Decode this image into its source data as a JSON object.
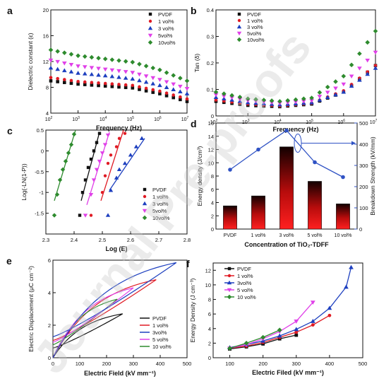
{
  "watermark": "Journal Pre-proofs",
  "chart_data": [
    {
      "id": "a",
      "panel_label": "a",
      "type": "scatter",
      "xlabel": "Frequency (Hz)",
      "ylabel": "Dielectric constant (ε)",
      "xscale": "log",
      "xlim": [
        100,
        10000000
      ],
      "ylim": [
        4,
        20
      ],
      "xticks": [
        100,
        1000,
        10000,
        100000,
        1000000,
        10000000
      ],
      "yticks": [
        4,
        8,
        12,
        16,
        20
      ],
      "legend": "top-right",
      "series": [
        {
          "name": "PVDF",
          "color": "#111111",
          "marker": "square",
          "points": [
            [
              100,
              9.0
            ],
            [
              1000,
              8.5
            ],
            [
              10000,
              8.2
            ],
            [
              100000,
              7.9
            ],
            [
              1000000,
              7.0
            ],
            [
              10000000,
              5.8
            ]
          ]
        },
        {
          "name": "1 vol%",
          "color": "#e01b24",
          "marker": "circle",
          "points": [
            [
              100,
              9.5
            ],
            [
              1000,
              8.9
            ],
            [
              10000,
              8.6
            ],
            [
              100000,
              8.3
            ],
            [
              1000000,
              7.4
            ],
            [
              10000000,
              6.2
            ]
          ]
        },
        {
          "name": "3 vol%",
          "color": "#1d3fbf",
          "marker": "triangle",
          "points": [
            [
              100,
              11.0
            ],
            [
              1000,
              10.2
            ],
            [
              10000,
              9.8
            ],
            [
              100000,
              9.3
            ],
            [
              1000000,
              8.3
            ],
            [
              10000000,
              7.0
            ]
          ]
        },
        {
          "name": "5vol%",
          "color": "#e040e8",
          "marker": "triangle-down",
          "points": [
            [
              100,
              12.2
            ],
            [
              1000,
              11.3
            ],
            [
              10000,
              10.8
            ],
            [
              100000,
              10.3
            ],
            [
              1000000,
              9.2
            ],
            [
              10000000,
              7.8
            ]
          ]
        },
        {
          "name": "10vol%",
          "color": "#2e8b2e",
          "marker": "diamond",
          "points": [
            [
              100,
              13.8
            ],
            [
              1000,
              12.9
            ],
            [
              10000,
              12.4
            ],
            [
              100000,
              11.9
            ],
            [
              1000000,
              10.7
            ],
            [
              10000000,
              9.0
            ]
          ]
        }
      ]
    },
    {
      "id": "b",
      "panel_label": "b",
      "type": "scatter",
      "xlabel": "Frequency (Hz)",
      "ylabel": "Tan (δ)",
      "xscale": "log",
      "xlim": [
        100,
        10000000
      ],
      "ylim": [
        0,
        0.4
      ],
      "xticks": [
        100,
        1000,
        10000,
        100000,
        1000000,
        10000000
      ],
      "yticks": [
        0,
        0.1,
        0.2,
        0.3,
        0.4
      ],
      "legend": "top-left",
      "series": [
        {
          "name": "PVDF",
          "color": "#111111",
          "marker": "square",
          "points": [
            [
              100,
              0.055
            ],
            [
              1000,
              0.04
            ],
            [
              10000,
              0.035
            ],
            [
              100000,
              0.045
            ],
            [
              1000000,
              0.09
            ],
            [
              10000000,
              0.19
            ]
          ]
        },
        {
          "name": "1 vol%",
          "color": "#e01b24",
          "marker": "circle",
          "points": [
            [
              100,
              0.06
            ],
            [
              1000,
              0.045
            ],
            [
              10000,
              0.038
            ],
            [
              100000,
              0.048
            ],
            [
              1000000,
              0.095
            ],
            [
              10000000,
              0.19
            ]
          ]
        },
        {
          "name": "3 vol%",
          "color": "#1d3fbf",
          "marker": "triangle",
          "points": [
            [
              100,
              0.07
            ],
            [
              1000,
              0.05
            ],
            [
              10000,
              0.042
            ],
            [
              100000,
              0.05
            ],
            [
              1000000,
              0.09
            ],
            [
              10000000,
              0.18
            ]
          ]
        },
        {
          "name": "5vol%",
          "color": "#e040e8",
          "marker": "triangle-down",
          "points": [
            [
              100,
              0.08
            ],
            [
              1000,
              0.058
            ],
            [
              10000,
              0.048
            ],
            [
              100000,
              0.058
            ],
            [
              1000000,
              0.12
            ],
            [
              10000000,
              0.24
            ]
          ]
        },
        {
          "name": "10vol%",
          "color": "#2e8b2e",
          "marker": "diamond",
          "points": [
            [
              100,
              0.09
            ],
            [
              1000,
              0.065
            ],
            [
              10000,
              0.055
            ],
            [
              100000,
              0.068
            ],
            [
              1000000,
              0.15
            ],
            [
              10000000,
              0.32
            ]
          ]
        }
      ]
    },
    {
      "id": "c",
      "panel_label": "c",
      "type": "scatter",
      "xlabel": "Log (E)",
      "ylabel": "Log(-LN(1-P))",
      "xlim": [
        2.3,
        2.8
      ],
      "ylim": [
        -2.0,
        0.5
      ],
      "xticks": [
        2.3,
        2.4,
        2.5,
        2.6,
        2.7,
        2.8
      ],
      "yticks": [
        -1.5,
        -1.0,
        -0.5,
        0.0,
        0.5
      ],
      "legend": "bottom-right",
      "series": [
        {
          "name": "PVDF",
          "color": "#111111",
          "marker": "square",
          "points": [
            [
              2.42,
              -1.55
            ],
            [
              2.43,
              -1.0
            ],
            [
              2.44,
              -0.7
            ],
            [
              2.45,
              -0.4
            ],
            [
              2.46,
              -0.2
            ],
            [
              2.47,
              0.0
            ],
            [
              2.48,
              0.2
            ],
            [
              2.49,
              0.42
            ]
          ],
          "fit": [
            [
              2.425,
              -1.2
            ],
            [
              2.49,
              0.45
            ]
          ]
        },
        {
          "name": "1 vol%",
          "color": "#e01b24",
          "marker": "circle",
          "points": [
            [
              2.46,
              -1.55
            ],
            [
              2.5,
              -1.0
            ],
            [
              2.51,
              -0.6
            ],
            [
              2.52,
              -0.3
            ],
            [
              2.53,
              -0.1
            ],
            [
              2.55,
              0.1
            ],
            [
              2.56,
              0.3
            ],
            [
              2.58,
              0.42
            ]
          ],
          "fit": [
            [
              2.495,
              -1.2
            ],
            [
              2.575,
              0.5
            ]
          ]
        },
        {
          "name": "3 vol%",
          "color": "#1d3fbf",
          "marker": "triangle",
          "points": [
            [
              2.52,
              -1.55
            ],
            [
              2.53,
              -0.95
            ],
            [
              2.55,
              -0.65
            ],
            [
              2.56,
              -0.45
            ],
            [
              2.58,
              -0.3
            ],
            [
              2.6,
              -0.1
            ],
            [
              2.62,
              0.1
            ],
            [
              2.64,
              0.3
            ]
          ],
          "fit": [
            [
              2.525,
              -0.95
            ],
            [
              2.65,
              0.3
            ]
          ]
        },
        {
          "name": "5vol%",
          "color": "#e040e8",
          "marker": "triangle-down",
          "points": [
            [
              2.44,
              -1.55
            ],
            [
              2.46,
              -1.05
            ],
            [
              2.47,
              -0.7
            ],
            [
              2.48,
              -0.45
            ],
            [
              2.49,
              -0.25
            ],
            [
              2.5,
              -0.05
            ],
            [
              2.51,
              0.15
            ],
            [
              2.52,
              0.38
            ]
          ],
          "fit": [
            [
              2.445,
              -1.3
            ],
            [
              2.525,
              0.45
            ]
          ]
        },
        {
          "name": "10vol%",
          "color": "#2e8b2e",
          "marker": "diamond",
          "points": [
            [
              2.33,
              -1.55
            ],
            [
              2.34,
              -1.05
            ],
            [
              2.35,
              -0.7
            ],
            [
              2.36,
              -0.45
            ],
            [
              2.37,
              -0.25
            ],
            [
              2.38,
              -0.05
            ],
            [
              2.39,
              0.15
            ],
            [
              2.4,
              0.4
            ]
          ],
          "fit": [
            [
              2.33,
              -1.2
            ],
            [
              2.405,
              0.5
            ]
          ]
        }
      ]
    },
    {
      "id": "d",
      "panel_label": "d",
      "type": "bar",
      "categories": [
        "PVDF",
        "1 vol%",
        "3 vol%",
        "5 vol%",
        "10 vol%"
      ],
      "xlabel": "Concentration of TiO₂-TDFF",
      "ylabel": "Energy density (J/cm³)",
      "ylabel_right": "Breakdown Strength (kV/mm)",
      "ylim": [
        0,
        16
      ],
      "yticks": [
        0,
        2,
        4,
        6,
        8,
        10,
        12,
        14,
        16
      ],
      "ylim_right": [
        0,
        500
      ],
      "yticks_right": [
        0,
        100,
        200,
        300,
        400,
        500
      ],
      "bar_values": [
        3.5,
        5.0,
        12.4,
        7.2,
        3.8
      ],
      "line_values": [
        280,
        375,
        465,
        315,
        245
      ],
      "bar_color": "#e01010",
      "line_color": "#2f52c4"
    },
    {
      "id": "e",
      "panel_label": "e",
      "type": "line",
      "xlabel": "Electric Field (kV mm⁻¹)",
      "ylabel": "Electric Displacement (μC cm⁻²)",
      "xlim": [
        0,
        500
      ],
      "ylim": [
        0,
        6
      ],
      "xticks": [
        0,
        100,
        200,
        300,
        400,
        500
      ],
      "yticks": [
        0,
        2,
        4,
        6
      ],
      "legend": "bottom-right",
      "series": [
        {
          "name": "PVDF",
          "color": "#111111",
          "emax": 260,
          "dmax": 2.7
        },
        {
          "name": "1 vol%",
          "color": "#e01b24",
          "emax": 385,
          "dmax": 4.8
        },
        {
          "name": "3vol%",
          "color": "#1d3fbf",
          "emax": 460,
          "dmax": 5.85
        },
        {
          "name": "5 vol%",
          "color": "#e040e8",
          "emax": 300,
          "dmax": 4.3
        },
        {
          "name": "10 vol%",
          "color": "#2e8b2e",
          "emax": 240,
          "dmax": 3.6
        }
      ]
    },
    {
      "id": "f",
      "panel_label": "f",
      "type": "line",
      "xlabel": "Electric Filed (kV mm⁻¹)",
      "ylabel": "Energy Density (J cm⁻³)",
      "xlim": [
        50,
        500
      ],
      "ylim": [
        0,
        13
      ],
      "xticks": [
        100,
        200,
        300,
        400,
        500
      ],
      "yticks": [
        0,
        2,
        4,
        6,
        8,
        10,
        12
      ],
      "legend": "top-left",
      "series": [
        {
          "name": "PVDF",
          "color": "#111111",
          "marker": "square",
          "points": [
            [
              100,
              1.2
            ],
            [
              150,
              1.5
            ],
            [
              200,
              1.9
            ],
            [
              250,
              2.6
            ],
            [
              300,
              3.1
            ]
          ]
        },
        {
          "name": "1 vol%",
          "color": "#e01b24",
          "marker": "circle",
          "points": [
            [
              100,
              1.3
            ],
            [
              150,
              1.6
            ],
            [
              200,
              2.1
            ],
            [
              250,
              2.8
            ],
            [
              300,
              3.5
            ],
            [
              350,
              4.5
            ],
            [
              400,
              5.8
            ]
          ]
        },
        {
          "name": "3vol%",
          "color": "#1d3fbf",
          "marker": "triangle",
          "points": [
            [
              100,
              1.4
            ],
            [
              150,
              1.8
            ],
            [
              200,
              2.3
            ],
            [
              250,
              3.0
            ],
            [
              300,
              3.9
            ],
            [
              350,
              5.0
            ],
            [
              400,
              6.8
            ],
            [
              450,
              9.7
            ],
            [
              465,
              12.4
            ]
          ]
        },
        {
          "name": "5 vol%",
          "color": "#e040e8",
          "marker": "triangle-down",
          "points": [
            [
              100,
              1.3
            ],
            [
              150,
              1.8
            ],
            [
              200,
              2.6
            ],
            [
              250,
              3.6
            ],
            [
              300,
              5.0
            ],
            [
              350,
              7.6
            ]
          ]
        },
        {
          "name": "10 vol%",
          "color": "#2e8b2e",
          "marker": "diamond",
          "points": [
            [
              100,
              1.3
            ],
            [
              150,
              2.0
            ],
            [
              200,
              2.8
            ],
            [
              250,
              3.8
            ]
          ]
        }
      ]
    }
  ]
}
